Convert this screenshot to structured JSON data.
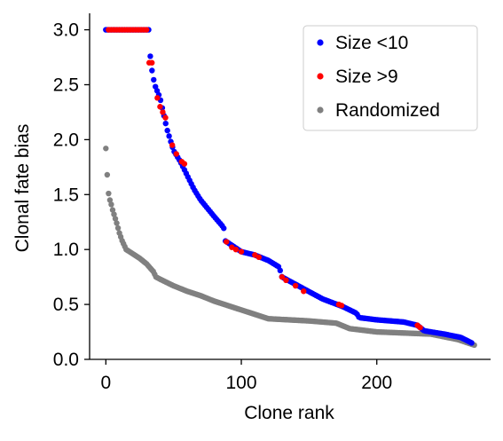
{
  "chart_data": {
    "type": "scatter",
    "title": "",
    "xlabel": "Clone rank",
    "ylabel": "Clonal fate bias",
    "xlim": [
      -12,
      284
    ],
    "ylim": [
      0,
      3.15
    ],
    "xticks": [
      0,
      100,
      200
    ],
    "yticks": [
      0.0,
      0.5,
      1.0,
      1.5,
      2.0,
      2.5,
      3.0
    ],
    "xtick_labels": [
      "0",
      "100",
      "200"
    ],
    "ytick_labels": [
      "0.0",
      "0.5",
      "1.0",
      "1.5",
      "2.0",
      "2.5",
      "3.0"
    ],
    "grid": false,
    "legend_position": "top-right",
    "series": [
      {
        "name": "Size <10",
        "color": "#0000ff",
        "anchors": [
          [
            0,
            3.0
          ],
          [
            32,
            3.0
          ],
          [
            33,
            2.7
          ],
          [
            36,
            2.5
          ],
          [
            40,
            2.38
          ],
          [
            45,
            2.1
          ],
          [
            50,
            1.9
          ],
          [
            55,
            1.8
          ],
          [
            65,
            1.55
          ],
          [
            70,
            1.45
          ],
          [
            80,
            1.3
          ],
          [
            87,
            1.2
          ],
          [
            88,
            1.08
          ],
          [
            100,
            0.98
          ],
          [
            110,
            0.95
          ],
          [
            120,
            0.9
          ],
          [
            128,
            0.84
          ],
          [
            130,
            0.75
          ],
          [
            145,
            0.65
          ],
          [
            160,
            0.55
          ],
          [
            175,
            0.48
          ],
          [
            185,
            0.42
          ],
          [
            187,
            0.38
          ],
          [
            200,
            0.36
          ],
          [
            220,
            0.34
          ],
          [
            230,
            0.31
          ],
          [
            235,
            0.26
          ],
          [
            250,
            0.23
          ],
          [
            262,
            0.2
          ],
          [
            270,
            0.15
          ]
        ],
        "count": 215
      },
      {
        "name": "Size >9",
        "color": "#ff0000",
        "points": [
          [
            2,
            3.0
          ],
          [
            4,
            3.0
          ],
          [
            6,
            3.0
          ],
          [
            8,
            3.0
          ],
          [
            10,
            3.0
          ],
          [
            12,
            3.0
          ],
          [
            14,
            3.0
          ],
          [
            16,
            3.0
          ],
          [
            18,
            3.0
          ],
          [
            20,
            3.0
          ],
          [
            22,
            3.0
          ],
          [
            24,
            3.0
          ],
          [
            26,
            3.0
          ],
          [
            28,
            3.0
          ],
          [
            30,
            3.0
          ],
          [
            32,
            2.7
          ],
          [
            34,
            2.7
          ],
          [
            38,
            2.38
          ],
          [
            40,
            2.3
          ],
          [
            42,
            2.25
          ],
          [
            44,
            2.2
          ],
          [
            49,
            1.95
          ],
          [
            52,
            1.87
          ],
          [
            56,
            1.8
          ],
          [
            58,
            1.78
          ],
          [
            89,
            1.07
          ],
          [
            93,
            1.02
          ],
          [
            96,
            1.0
          ],
          [
            100,
            0.98
          ],
          [
            110,
            0.95
          ],
          [
            113,
            0.93
          ],
          [
            130,
            0.75
          ],
          [
            133,
            0.72
          ],
          [
            140,
            0.67
          ],
          [
            146,
            0.62
          ],
          [
            172,
            0.5
          ],
          [
            174,
            0.49
          ],
          [
            230,
            0.31
          ],
          [
            232,
            0.29
          ]
        ]
      },
      {
        "name": "Randomized",
        "color": "#808080",
        "anchors": [
          [
            0,
            1.92
          ],
          [
            1,
            1.68
          ],
          [
            2,
            1.51
          ],
          [
            3,
            1.45
          ],
          [
            4,
            1.41
          ],
          [
            5,
            1.36
          ],
          [
            6,
            1.32
          ],
          [
            8,
            1.24
          ],
          [
            10,
            1.15
          ],
          [
            12,
            1.08
          ],
          [
            15,
            1.0
          ],
          [
            20,
            0.96
          ],
          [
            25,
            0.92
          ],
          [
            30,
            0.87
          ],
          [
            35,
            0.8
          ],
          [
            37,
            0.75
          ],
          [
            40,
            0.73
          ],
          [
            50,
            0.67
          ],
          [
            60,
            0.62
          ],
          [
            70,
            0.58
          ],
          [
            80,
            0.53
          ],
          [
            100,
            0.45
          ],
          [
            110,
            0.41
          ],
          [
            120,
            0.37
          ],
          [
            150,
            0.35
          ],
          [
            170,
            0.33
          ],
          [
            180,
            0.28
          ],
          [
            200,
            0.25
          ],
          [
            240,
            0.23
          ],
          [
            260,
            0.18
          ],
          [
            272,
            0.13
          ]
        ],
        "count": 273
      }
    ]
  }
}
